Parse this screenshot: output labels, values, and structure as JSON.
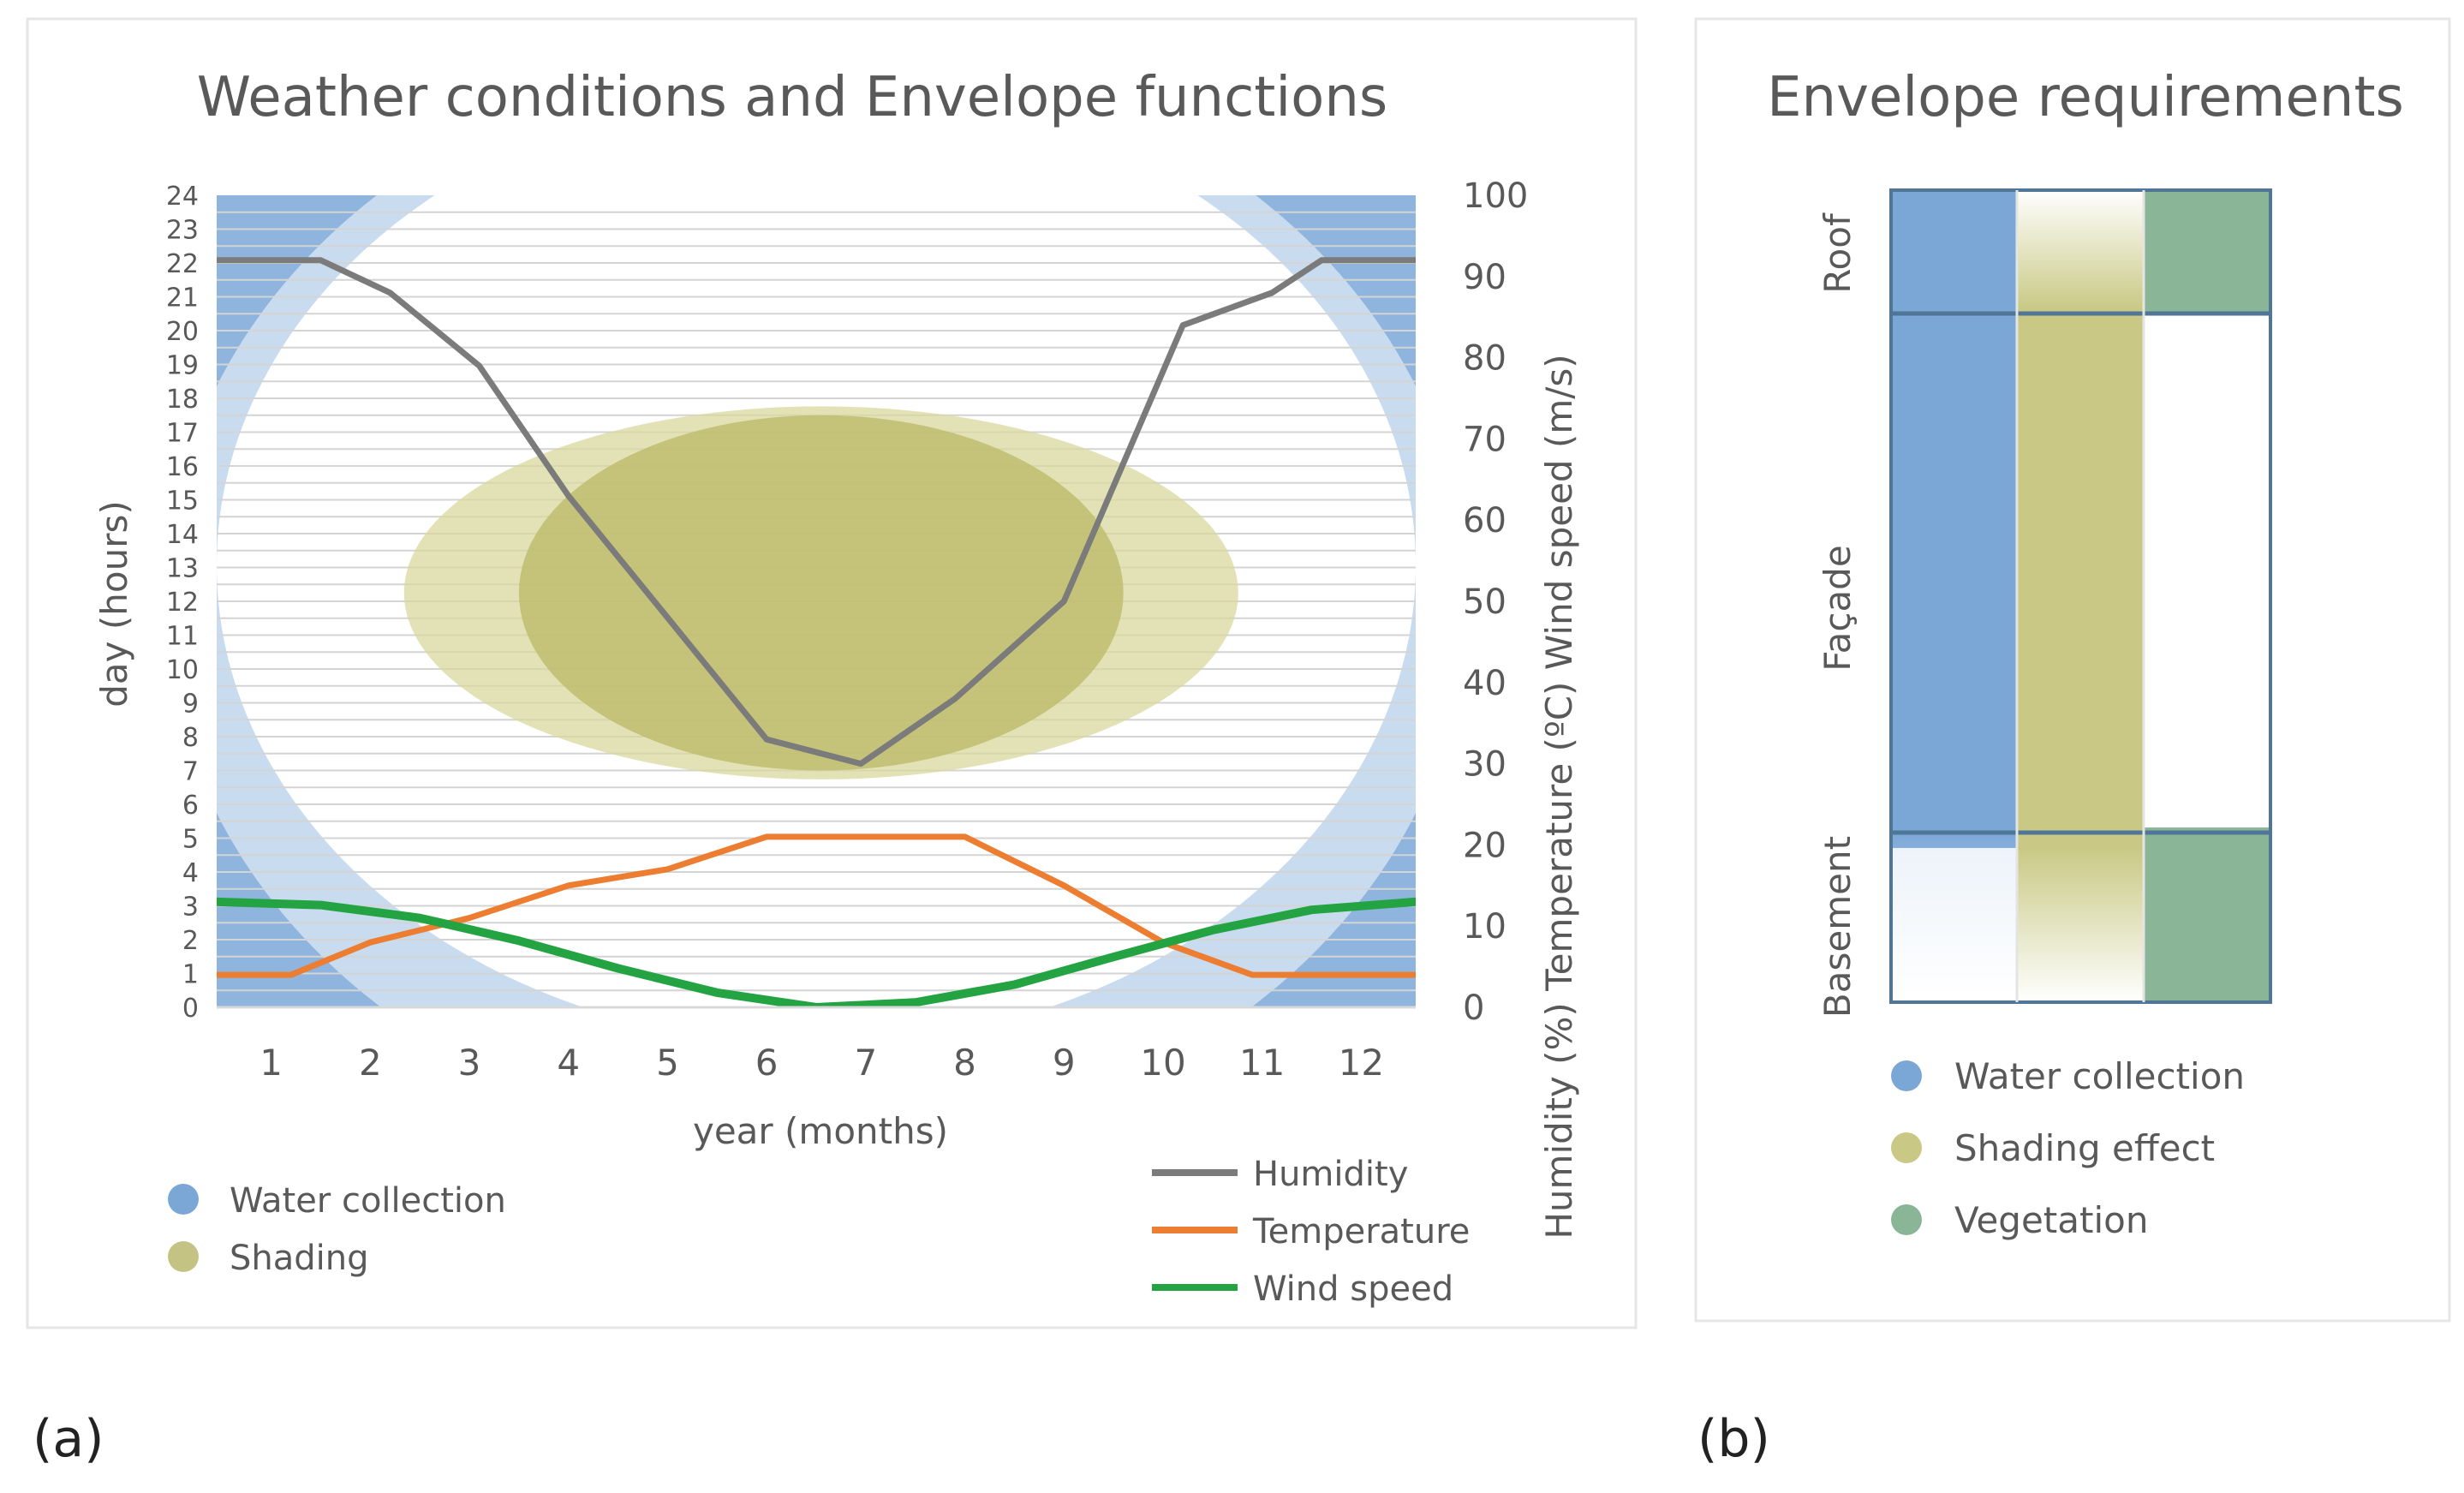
{
  "panel_a": {
    "caption": "(a)",
    "chart_data": {
      "type": "line",
      "title": "Weather conditions and Envelope functions",
      "xlabel": "year (months)",
      "ylabel_left": "day (hours)",
      "ylabel_right": "Humidity (%) Temperature (ºC) Wind speed (m/s)",
      "x": [
        1,
        2,
        3,
        4,
        5,
        6,
        7,
        8,
        9,
        10,
        11,
        12
      ],
      "xlim": [
        0.45,
        12.55
      ],
      "ylim_left": [
        0,
        24
      ],
      "ylim_right": [
        0,
        100
      ],
      "left_ticks": [
        "0",
        "1",
        "2",
        "3",
        "4",
        "5",
        "6",
        "7",
        "8",
        "9",
        "10",
        "11",
        "12",
        "13",
        "14",
        "15",
        "16",
        "17",
        "18",
        "19",
        "20",
        "21",
        "22",
        "23",
        "24"
      ],
      "right_ticks": [
        "0",
        "10",
        "20",
        "30",
        "40",
        "50",
        "60",
        "70",
        "80",
        "90",
        "100"
      ],
      "series": [
        {
          "name": "Humidity",
          "color": "#7b7b7b",
          "points": [
            [
              0.45,
              92
            ],
            [
              1.5,
              92
            ],
            [
              2.2,
              88
            ],
            [
              3.1,
              79
            ],
            [
              4.0,
              63
            ],
            [
              5.0,
              48
            ],
            [
              6.0,
              33
            ],
            [
              6.95,
              30
            ],
            [
              7.9,
              38
            ],
            [
              9.0,
              50
            ],
            [
              10.2,
              84
            ],
            [
              11.1,
              88
            ],
            [
              11.6,
              92
            ],
            [
              12.55,
              92
            ]
          ]
        },
        {
          "name": "Temperature",
          "color": "#ec7d31",
          "points": [
            [
              0.45,
              4
            ],
            [
              1.2,
              4
            ],
            [
              2.0,
              8
            ],
            [
              3.0,
              11
            ],
            [
              4.0,
              15
            ],
            [
              5.0,
              17
            ],
            [
              6.0,
              21
            ],
            [
              7.0,
              21
            ],
            [
              8.0,
              21
            ],
            [
              9.0,
              15
            ],
            [
              10.0,
              8
            ],
            [
              10.9,
              4
            ],
            [
              12.55,
              4
            ]
          ]
        },
        {
          "name": "Wind speed",
          "color": "#23a341",
          "points": [
            [
              0.45,
              13
            ],
            [
              1.5,
              12.6
            ],
            [
              2.5,
              11
            ],
            [
              3.5,
              8.2
            ],
            [
              4.5,
              4.8
            ],
            [
              5.5,
              1.8
            ],
            [
              6.5,
              0
            ],
            [
              7.5,
              0.6
            ],
            [
              8.5,
              2.8
            ],
            [
              9.5,
              6.2
            ],
            [
              10.5,
              9.5
            ],
            [
              11.5,
              12
            ],
            [
              12.55,
              13
            ]
          ]
        }
      ],
      "legend_lines": [
        "Humidity",
        "Temperature",
        "Wind speed"
      ],
      "legend_areas": [
        {
          "label": "Water collection",
          "color": "#7ba7d7"
        },
        {
          "label": "Shading",
          "color": "#c5c384"
        }
      ],
      "shading_area": {
        "months": [
          3.5,
          9.6
        ],
        "hours": [
          7,
          17.5
        ],
        "color": "#bfbd6f"
      },
      "water_collection_color": "#88b0db"
    }
  },
  "panel_b": {
    "caption": "(b)",
    "title": "Envelope requirements",
    "zones": [
      "Roof",
      "Façade",
      "Basement"
    ],
    "columns": [
      {
        "label": "Water collection",
        "color": "#7ba7d7"
      },
      {
        "label": "Shading effect",
        "color": "#c9c985"
      },
      {
        "label": "Vegetation",
        "color": "#8bb597"
      }
    ],
    "legend": [
      {
        "label": "Water collection",
        "color": "#7ba7d7"
      },
      {
        "label": "Shading effect",
        "color": "#c9c985"
      },
      {
        "label": "Vegetation",
        "color": "#8bb597"
      }
    ]
  }
}
